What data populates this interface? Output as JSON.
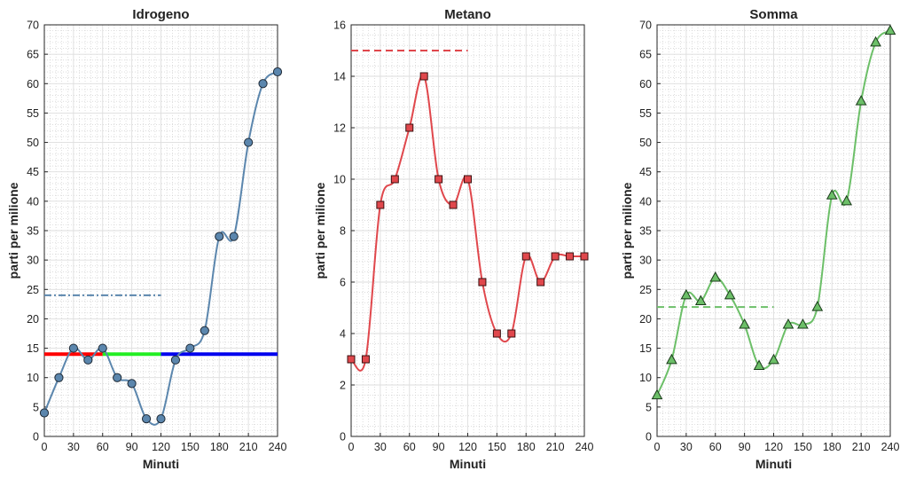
{
  "chart_data": [
    {
      "type": "line",
      "title": "Idrogeno",
      "xlabel": "Minuti",
      "ylabel": "parti per milione",
      "xlim": [
        0,
        240
      ],
      "ylim": [
        0,
        70
      ],
      "xticks": [
        0,
        30,
        60,
        90,
        120,
        150,
        180,
        210,
        240
      ],
      "yticks": [
        0,
        5,
        10,
        15,
        20,
        25,
        30,
        35,
        40,
        45,
        50,
        55,
        60,
        65,
        70
      ],
      "grid": true,
      "series": [
        {
          "marker": "circle",
          "color": "#5b86ad",
          "marker_fill": "#5b86ad",
          "x": [
            0,
            15,
            30,
            45,
            60,
            75,
            90,
            105,
            120,
            135,
            150,
            165,
            180,
            195,
            210,
            225,
            240
          ],
          "y": [
            4,
            10,
            15,
            13,
            15,
            10,
            9,
            3,
            3,
            13,
            15,
            18,
            34,
            34,
            50,
            60,
            62
          ]
        }
      ],
      "reference_lines": [
        {
          "x": [
            0,
            120
          ],
          "y": 24,
          "color": "#5b86ad",
          "style": "dash-dot"
        },
        {
          "x": [
            0,
            60
          ],
          "y": 14,
          "color": "#ff0000",
          "style": "solid"
        },
        {
          "x": [
            60,
            120
          ],
          "y": 14,
          "color": "#22ee22",
          "style": "solid"
        },
        {
          "x": [
            120,
            240
          ],
          "y": 14,
          "color": "#0000ee",
          "style": "solid"
        }
      ]
    },
    {
      "type": "line",
      "title": "Metano",
      "xlabel": "Minuti",
      "ylabel": "parti per milione",
      "xlim": [
        0,
        240
      ],
      "ylim": [
        0,
        16
      ],
      "xticks": [
        0,
        30,
        60,
        90,
        120,
        150,
        180,
        210,
        240
      ],
      "yticks": [
        0,
        2,
        4,
        6,
        8,
        10,
        12,
        14,
        16
      ],
      "grid": true,
      "series": [
        {
          "marker": "square",
          "color": "#e0474c",
          "marker_fill": "#e0474c",
          "x": [
            0,
            15,
            30,
            45,
            60,
            75,
            90,
            105,
            120,
            135,
            150,
            165,
            180,
            195,
            210,
            225,
            240
          ],
          "y": [
            3,
            3,
            9,
            10,
            12,
            14,
            10,
            9,
            10,
            6,
            4,
            4,
            7,
            6,
            7,
            7,
            7
          ]
        }
      ],
      "reference_lines": [
        {
          "x": [
            0,
            120
          ],
          "y": 15,
          "color": "#e0474c",
          "style": "dash"
        }
      ]
    },
    {
      "type": "line",
      "title": "Somma",
      "xlabel": "Minuti",
      "ylabel": "parti per milione",
      "xlim": [
        0,
        240
      ],
      "ylim": [
        0,
        70
      ],
      "xticks": [
        0,
        30,
        60,
        90,
        120,
        150,
        180,
        210,
        240
      ],
      "yticks": [
        0,
        5,
        10,
        15,
        20,
        25,
        30,
        35,
        40,
        45,
        50,
        55,
        60,
        65,
        70
      ],
      "grid": true,
      "series": [
        {
          "marker": "triangle",
          "color": "#6cbf68",
          "marker_fill": "#6cbf68",
          "x": [
            0,
            15,
            30,
            45,
            60,
            75,
            90,
            105,
            120,
            135,
            150,
            165,
            180,
            195,
            210,
            225,
            240
          ],
          "y": [
            7,
            13,
            24,
            23,
            27,
            24,
            19,
            12,
            13,
            19,
            19,
            22,
            41,
            40,
            57,
            67,
            69
          ]
        }
      ],
      "reference_lines": [
        {
          "x": [
            0,
            120
          ],
          "y": 22,
          "color": "#6cbf68",
          "style": "dash"
        }
      ]
    }
  ]
}
